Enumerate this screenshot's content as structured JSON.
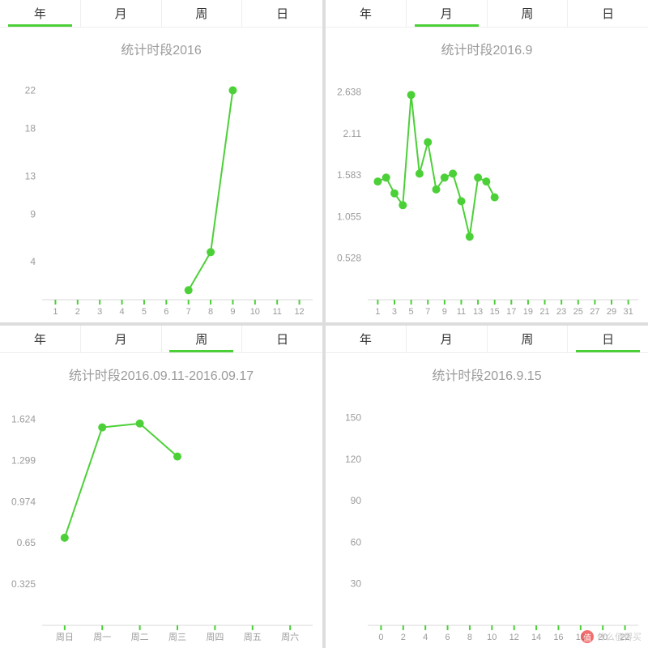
{
  "common": {
    "tabs": [
      "年",
      "月",
      "周",
      "日"
    ],
    "accent_color": "#4cd038",
    "grid_color": "#d8d8d8",
    "label_color": "#9b9b9b",
    "background_color": "#ffffff",
    "marker_radius": 5,
    "line_width": 2,
    "label_fontsize": 12,
    "title_fontsize": 16
  },
  "panels": [
    {
      "id": "year",
      "active_tab": 0,
      "title": "统计时段2016",
      "chart": {
        "type": "line",
        "x_categories": [
          "1",
          "2",
          "3",
          "4",
          "5",
          "6",
          "7",
          "8",
          "9",
          "10",
          "11",
          "12"
        ],
        "x_indices": [
          7,
          8,
          9
        ],
        "y_values": [
          1.0,
          5.0,
          22.0
        ],
        "y_ticks": [
          4,
          9,
          13,
          18,
          22
        ],
        "ylim": [
          0,
          24
        ],
        "series_color": "#4cd038"
      }
    },
    {
      "id": "month",
      "active_tab": 1,
      "title": "统计时段2016.9",
      "chart": {
        "type": "line",
        "x_categories": [
          "1",
          "3",
          "5",
          "7",
          "9",
          "11",
          "13",
          "15",
          "17",
          "19",
          "21",
          "23",
          "25",
          "27",
          "29",
          "31"
        ],
        "x_step_size": 2,
        "x_indices": [
          1,
          2,
          3,
          4,
          5,
          6,
          7,
          8,
          9,
          10,
          11,
          12,
          13,
          14,
          15
        ],
        "y_values": [
          1.5,
          1.55,
          1.35,
          1.2,
          2.6,
          1.6,
          2.0,
          1.4,
          1.55,
          1.6,
          1.25,
          0.8,
          1.55,
          1.5,
          1.3
        ],
        "y_ticks": [
          0.528,
          1.055,
          1.583,
          2.11,
          2.638
        ],
        "ylim": [
          0,
          2.9
        ],
        "series_color": "#4cd038"
      }
    },
    {
      "id": "week",
      "active_tab": 2,
      "title": "统计时段2016.09.11-2016.09.17",
      "chart": {
        "type": "line",
        "x_categories": [
          "周日",
          "周一",
          "周二",
          "周三",
          "周四",
          "周五",
          "周六"
        ],
        "x_indices": [
          1,
          2,
          3,
          4
        ],
        "y_values": [
          0.69,
          1.56,
          1.59,
          1.33
        ],
        "y_ticks": [
          0.325,
          0.65,
          0.974,
          1.299,
          1.624
        ],
        "ylim": [
          0,
          1.8
        ],
        "series_color": "#4cd038"
      }
    },
    {
      "id": "day",
      "active_tab": 3,
      "title": "统计时段2016.9.15",
      "chart": {
        "type": "line",
        "x_categories": [
          "0",
          "2",
          "4",
          "6",
          "8",
          "10",
          "12",
          "14",
          "16",
          "18",
          "20",
          "22"
        ],
        "x_step_size": 2,
        "x_indices": [],
        "y_values": [],
        "y_ticks": [
          30,
          60,
          90,
          120,
          150
        ],
        "ylim": [
          0,
          165
        ],
        "series_color": "#4cd038"
      }
    }
  ],
  "watermark": {
    "icon_text": "值",
    "text": "什么值得买"
  }
}
